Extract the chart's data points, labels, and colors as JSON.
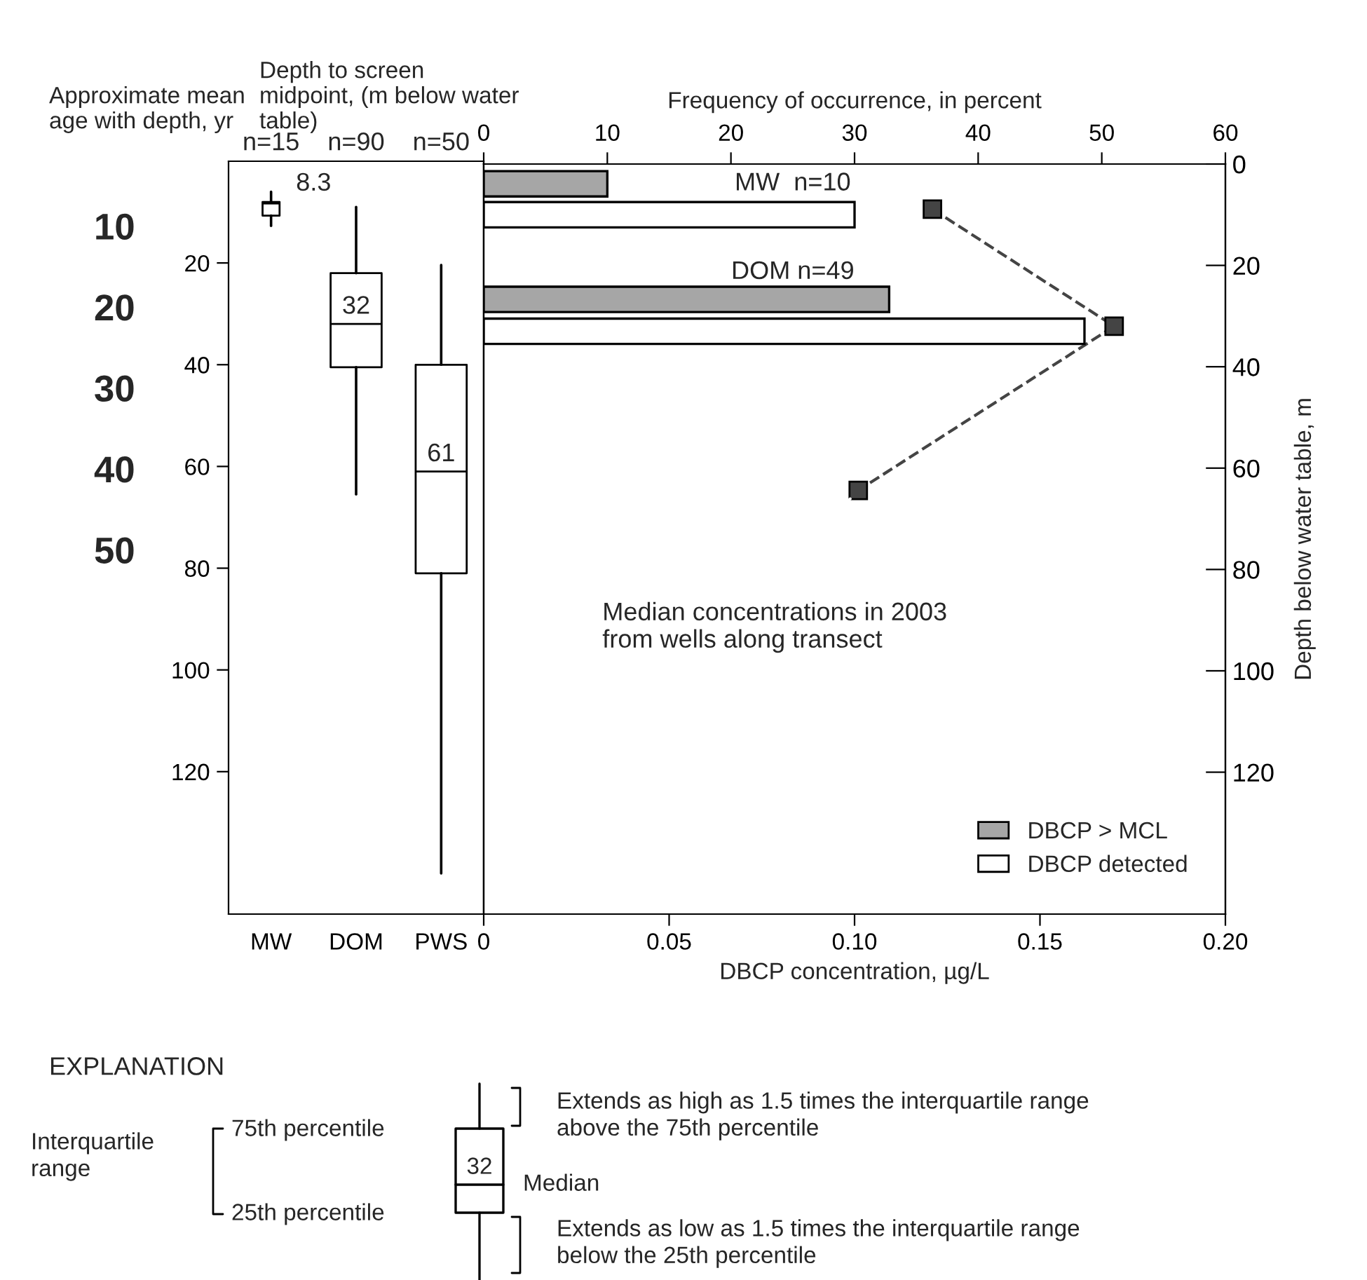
{
  "chart_data": [
    {
      "type": "box",
      "ylabel": "Depth to screen midpoint, (m below water table)",
      "y2label": "Approximate mean age with depth, yr",
      "categories": [
        "MW",
        "DOM",
        "PWS"
      ],
      "boxes": [
        {
          "low": 6,
          "q1": 8,
          "median": 8.3,
          "q3": 10.7,
          "high": 12.7
        },
        {
          "low": 9,
          "q1": 22,
          "median": 32,
          "q3": 40.5,
          "high": 65.5
        },
        {
          "low": 20.4,
          "q1": 40,
          "median": 61,
          "q3": 81,
          "high": 140
        }
      ],
      "value_labels": [
        "8.3",
        "32",
        "61"
      ],
      "ylim": [
        148,
        0
      ],
      "yticks": [
        20,
        40,
        60,
        80,
        100,
        120
      ],
      "y2lim": [
        95,
        2
      ],
      "y2ticks": [
        10,
        20,
        30,
        40,
        50
      ],
      "annotations": [
        "n=15",
        "n=90",
        "n=50"
      ],
      "grid": false
    },
    {
      "type": "bar",
      "orientation": "horizontal",
      "xlabel": "DBCP concentration, µg/L",
      "x2label": "Frequency of occurrence, in percent",
      "ylabel": "Depth below water table, m",
      "series": [
        {
          "name": "DBCP > MCL",
          "color": "#a6a6a6",
          "axis": "x2",
          "x": [
            3.9,
            26.7
          ],
          "values": [
            10,
            32.8
          ]
        },
        {
          "name": "DBCP detected",
          "color": "#ffffff",
          "axis": "x2",
          "x": [
            10,
            33
          ],
          "values": [
            30,
            48.6
          ]
        },
        {
          "type": "line",
          "color": "#444444",
          "marker": "square",
          "line_style": "dashed",
          "x": [
            8.9,
            32,
            64.4
          ],
          "values": [
            0.121,
            0.17,
            0.101
          ]
        }
      ],
      "xlim": [
        0,
        0.2
      ],
      "xticks": [
        0,
        0.05,
        {
          "value": 0.1,
          "label": "0.10"
        },
        0.15,
        {
          "value": 0.2,
          "label": "0.20"
        }
      ],
      "x2lim": [
        0,
        60
      ],
      "x2ticks": [
        0,
        10,
        20,
        30,
        40,
        50,
        60
      ],
      "ylim": [
        148,
        0
      ],
      "yticks": [
        0,
        20,
        40,
        60,
        80,
        100,
        120
      ],
      "annotations": [
        "MW  n=10",
        "DOM n=49",
        {
          "text": "Median concentrations in 2003\nfrom wells along transect",
          "x": 0.101,
          "y": 64.4
        }
      ],
      "legend": "bottom right",
      "grid": false
    },
    {
      "type": "other",
      "title": "EXPLANATION",
      "annotations": [
        "Interquartile\nrange",
        "75th percentile",
        "25th percentile",
        "32",
        "Median",
        "Extends as high as 1.5 times the interquartile range\nabove the 75th percentile",
        "Extends as low as 1.5 times the interquartile range\nbelow the 25th percentile"
      ]
    }
  ]
}
